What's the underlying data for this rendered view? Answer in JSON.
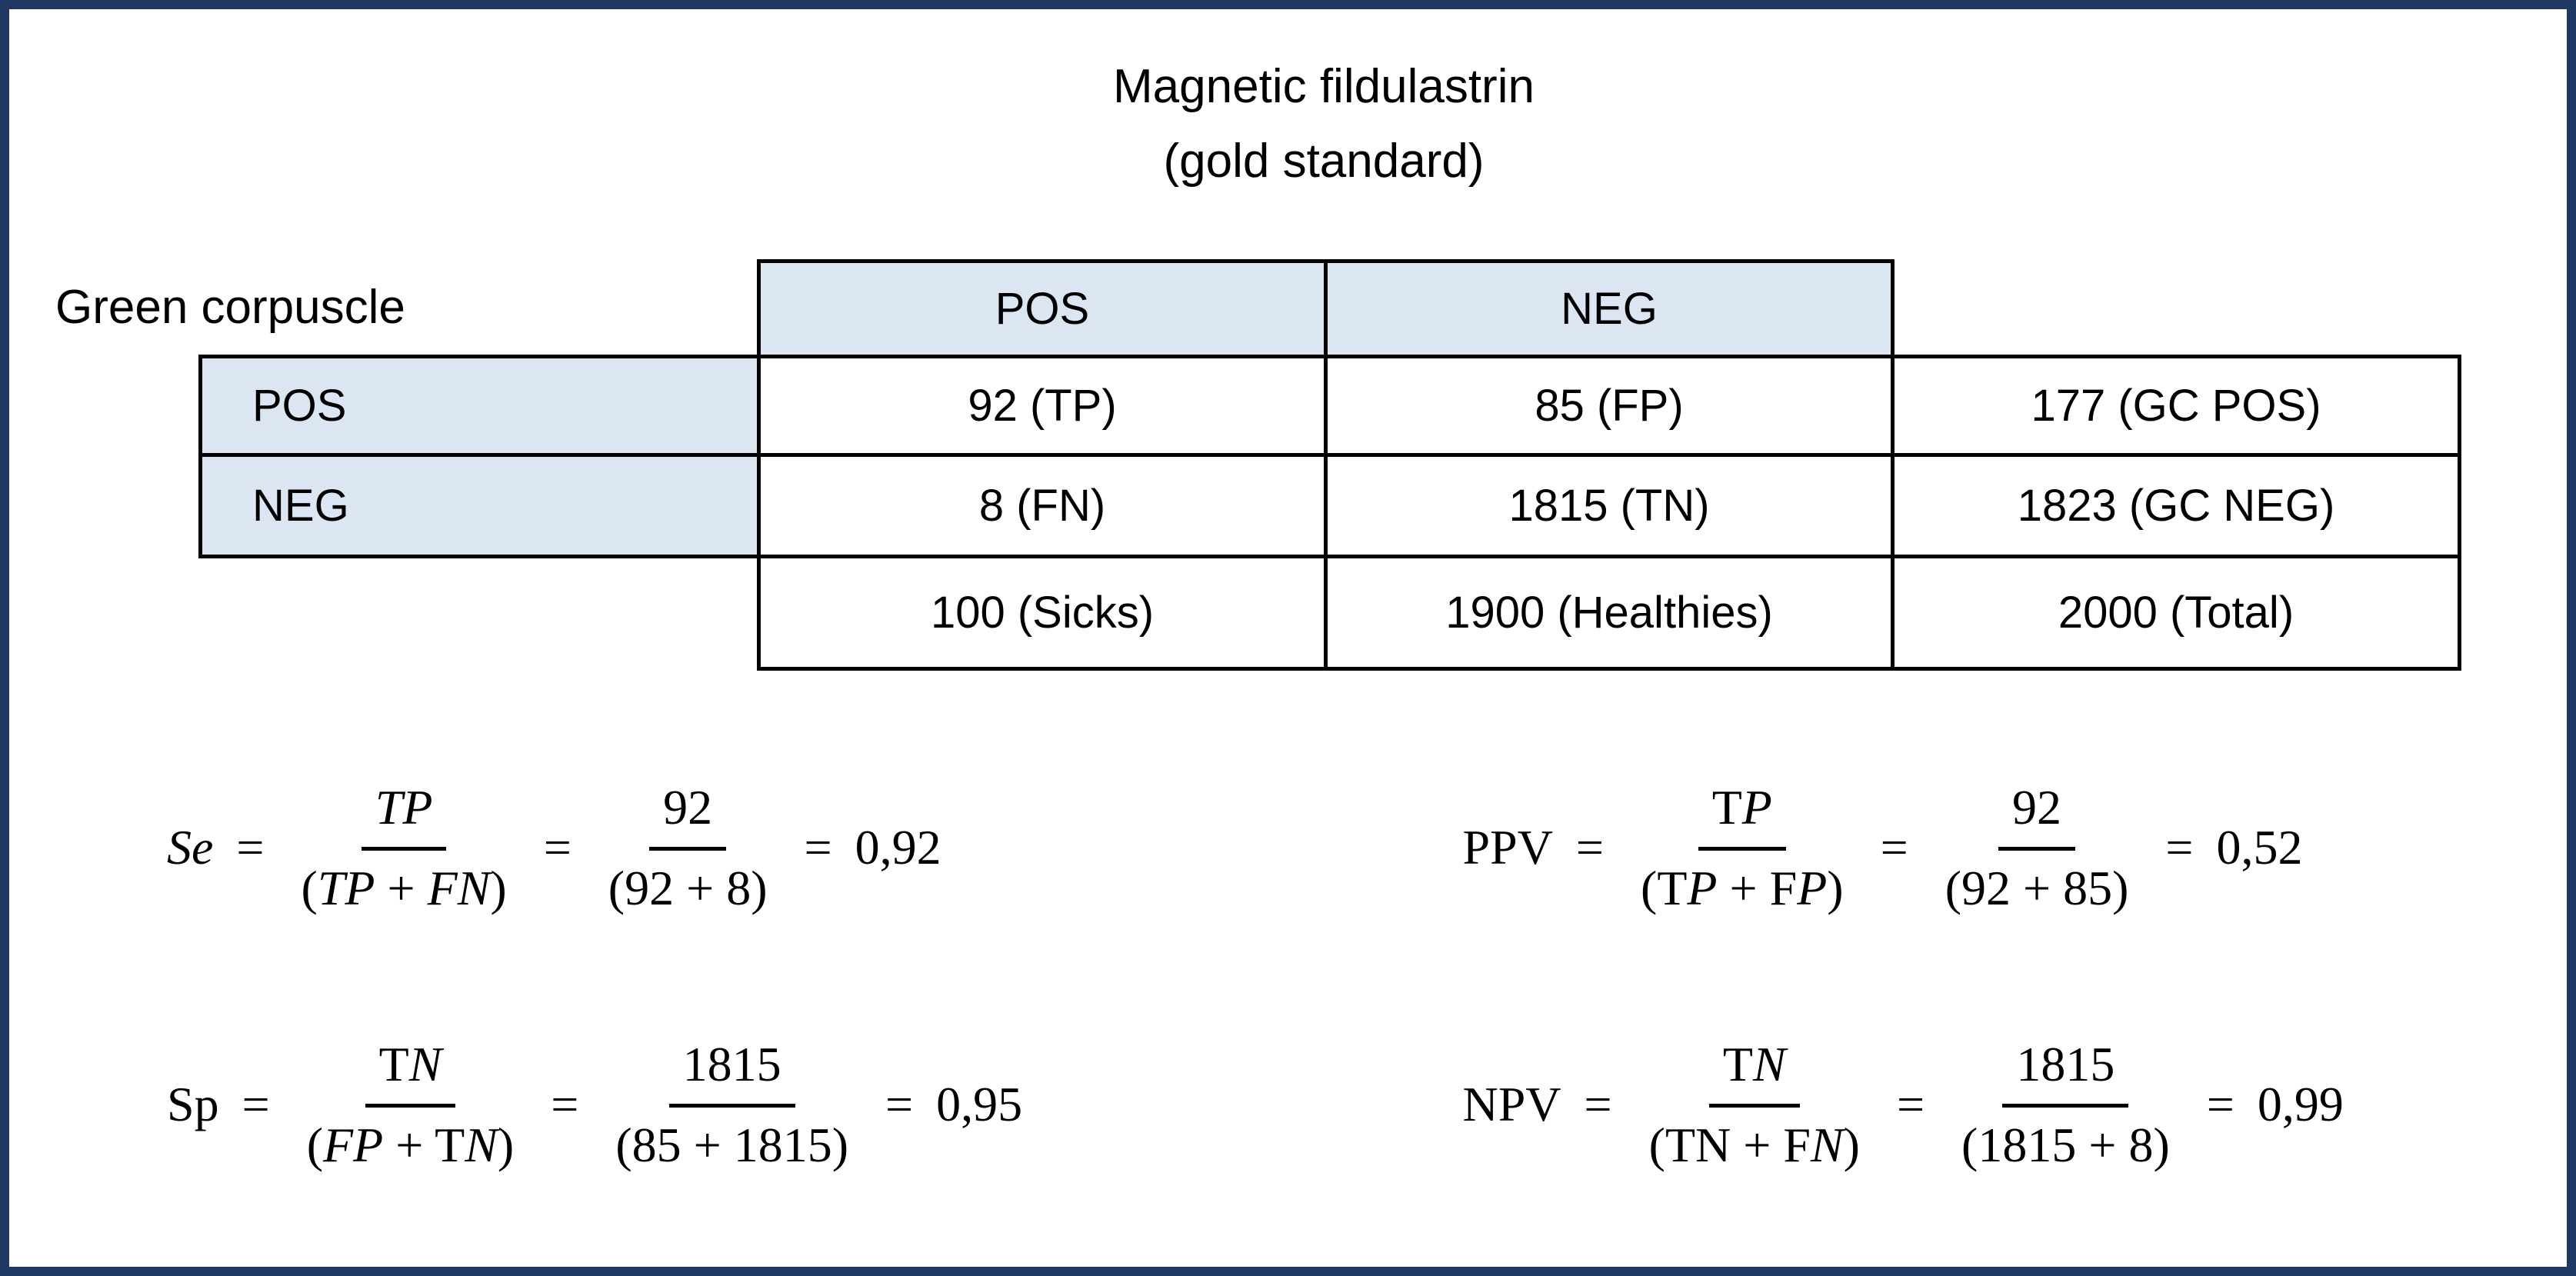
{
  "colors": {
    "frame": "#1F3864",
    "header_fill": "#DCE6F2",
    "grid_line": "#000000"
  },
  "title": {
    "line1": "Magnetic fildulastrin",
    "line2": "(gold standard)"
  },
  "row_axis_label": "Green corpuscle",
  "symbols": {
    "equals": "="
  },
  "table": {
    "col_headers": [
      "POS",
      "NEG"
    ],
    "rows": [
      {
        "header": "POS",
        "cells": [
          "92 (TP)",
          "85 (FP)",
          "177 (GC POS)"
        ]
      },
      {
        "header": "NEG",
        "cells": [
          "8 (FN)",
          "1815 (TN)",
          "1823 (GC NEG)"
        ]
      },
      {
        "header": "",
        "cells": [
          "100 (Sicks)",
          "1900 (Healthies)",
          "2000 (Total)"
        ]
      }
    ]
  },
  "formulas": [
    {
      "label": "*Se*",
      "sym_num": "*TP*",
      "sym_den": "(*TP* + *FN*)",
      "num_num": "92",
      "num_den": "(92 + 8)",
      "result": "0,92"
    },
    {
      "label": "PPV",
      "sym_num": "T*P*",
      "sym_den": "(T*P* + F*P*)",
      "num_num": "92",
      "num_den": "(92 + 85)",
      "result": "0,52"
    },
    {
      "label": "Sp",
      "sym_num": "T*N*",
      "sym_den": "(*FP* + T*N*)",
      "num_num": "1815",
      "num_den": "(85 + 1815)",
      "result": "0,95"
    },
    {
      "label": "NPV",
      "sym_num": "T*N*",
      "sym_den": "(TN + F*N*)",
      "num_num": "1815",
      "num_den": "(1815 + 8)",
      "result": "0,99"
    }
  ]
}
